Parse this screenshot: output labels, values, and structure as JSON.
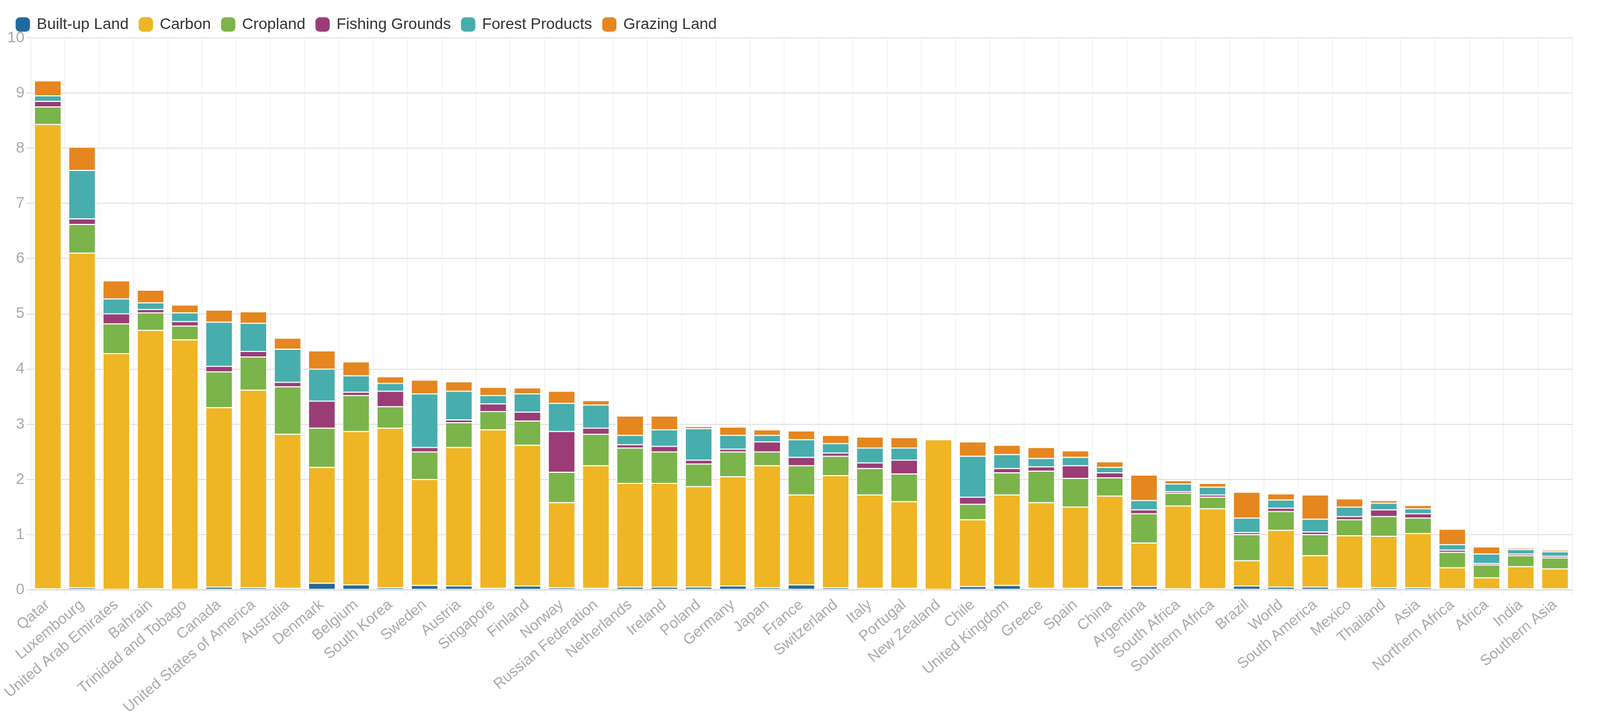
{
  "chart_data": {
    "type": "bar",
    "stacked": true,
    "grid": true,
    "legend": "top-left",
    "categories": [
      "Qatar",
      "Luxembourg",
      "United Arab Emirates",
      "Bahrain",
      "Trinidad and Tobago",
      "Canada",
      "United States of America",
      "Australia",
      "Denmark",
      "Belgium",
      "South Korea",
      "Sweden",
      "Austria",
      "Singapore",
      "Finland",
      "Norway",
      "Russian Federation",
      "Netherlands",
      "Ireland",
      "Poland",
      "Germany",
      "Japan",
      "France",
      "Switzerland",
      "Italy",
      "Portugal",
      "New Zealand",
      "Chile",
      "United Kingdom",
      "Greece",
      "Spain",
      "China",
      "Argentina",
      "South Africa",
      "Southern Africa",
      "Brazil",
      "World",
      "South America",
      "Mexico",
      "Thailand",
      "Asia",
      "Northern Africa",
      "Africa",
      "India",
      "Southern Asia"
    ],
    "ylim": [
      0,
      10
    ],
    "yticks": [
      0,
      1,
      2,
      3,
      4,
      5,
      6,
      7,
      8,
      9,
      10
    ],
    "series": [
      {
        "name": "Built-up Land",
        "color": "#23689b",
        "values": [
          0.02,
          0.04,
          0.01,
          0.02,
          0.01,
          0.05,
          0.04,
          0.03,
          0.12,
          0.09,
          0.04,
          0.08,
          0.07,
          0.03,
          0.07,
          0.04,
          0.03,
          0.05,
          0.05,
          0.05,
          0.07,
          0.04,
          0.09,
          0.04,
          0.03,
          0.03,
          0,
          0.06,
          0.08,
          0.03,
          0.03,
          0.06,
          0.06,
          0.02,
          0.02,
          0.07,
          0.05,
          0.05,
          0.03,
          0.04,
          0.04,
          0.02,
          0.02,
          0.02,
          0.02
        ]
      },
      {
        "name": "Carbon",
        "color": "#efb524",
        "values": [
          8.41,
          6.06,
          4.27,
          4.68,
          4.52,
          3.25,
          3.58,
          2.79,
          2.1,
          2.78,
          2.89,
          1.92,
          2.51,
          2.87,
          2.55,
          1.54,
          2.22,
          1.88,
          1.88,
          1.82,
          1.98,
          2.21,
          1.63,
          2.03,
          1.69,
          1.57,
          2.72,
          1.21,
          1.64,
          1.55,
          1.47,
          1.64,
          0.79,
          1.5,
          1.45,
          0.46,
          1.03,
          0.57,
          0.95,
          0.93,
          0.98,
          0.38,
          0.2,
          0.4,
          0.36
        ]
      },
      {
        "name": "Cropland",
        "color": "#7ab44a",
        "values": [
          0.32,
          0.52,
          0.54,
          0.32,
          0.25,
          0.65,
          0.6,
          0.86,
          0.71,
          0.65,
          0.39,
          0.5,
          0.45,
          0.33,
          0.44,
          0.55,
          0.57,
          0.64,
          0.57,
          0.41,
          0.45,
          0.25,
          0.53,
          0.35,
          0.48,
          0.5,
          0,
          0.28,
          0.4,
          0.57,
          0.52,
          0.33,
          0.53,
          0.23,
          0.21,
          0.47,
          0.34,
          0.38,
          0.29,
          0.36,
          0.28,
          0.28,
          0.23,
          0.2,
          0.2
        ]
      },
      {
        "name": "Fishing Grounds",
        "color": "#9b3c76",
        "values": [
          0.1,
          0.1,
          0.18,
          0.06,
          0.08,
          0.1,
          0.1,
          0.08,
          0.49,
          0.06,
          0.28,
          0.08,
          0.05,
          0.14,
          0.16,
          0.74,
          0.11,
          0.06,
          0.1,
          0.07,
          0.05,
          0.18,
          0.15,
          0.06,
          0.1,
          0.25,
          0,
          0.13,
          0.08,
          0.08,
          0.23,
          0.09,
          0.07,
          0.03,
          0.04,
          0.04,
          0.06,
          0.05,
          0.06,
          0.12,
          0.08,
          0.04,
          0.03,
          0.03,
          0.03
        ]
      },
      {
        "name": "Forest Products",
        "color": "#47adad",
        "values": [
          0.1,
          0.88,
          0.27,
          0.12,
          0.16,
          0.8,
          0.51,
          0.6,
          0.58,
          0.3,
          0.14,
          0.97,
          0.52,
          0.15,
          0.33,
          0.51,
          0.42,
          0.17,
          0.3,
          0.57,
          0.25,
          0.12,
          0.32,
          0.17,
          0.27,
          0.22,
          0,
          0.74,
          0.25,
          0.15,
          0.15,
          0.1,
          0.17,
          0.14,
          0.14,
          0.26,
          0.15,
          0.23,
          0.17,
          0.12,
          0.09,
          0.1,
          0.17,
          0.08,
          0.08
        ]
      },
      {
        "name": "Grazing Land",
        "color": "#e5861f",
        "values": [
          0.27,
          0.42,
          0.33,
          0.23,
          0.14,
          0.22,
          0.21,
          0.2,
          0.33,
          0.25,
          0.12,
          0.25,
          0.17,
          0.15,
          0.11,
          0.22,
          0.08,
          0.35,
          0.25,
          0.04,
          0.15,
          0.1,
          0.16,
          0.15,
          0.2,
          0.19,
          0,
          0.26,
          0.17,
          0.2,
          0.12,
          0.1,
          0.46,
          0.06,
          0.07,
          0.47,
          0.11,
          0.44,
          0.15,
          0.05,
          0.06,
          0.28,
          0.13,
          0.03,
          0.03
        ]
      }
    ]
  }
}
